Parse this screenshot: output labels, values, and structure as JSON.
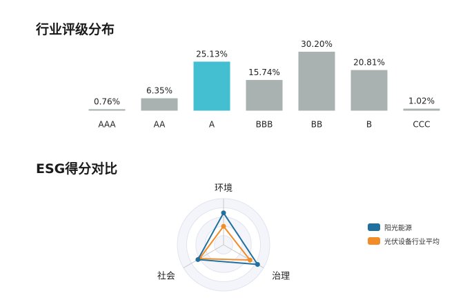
{
  "chart_data": [
    {
      "type": "bar",
      "title": "行业评级分布",
      "categories": [
        "AAA",
        "AA",
        "A",
        "BBB",
        "BB",
        "B",
        "CCC"
      ],
      "values": [
        0.76,
        6.35,
        25.13,
        15.74,
        30.2,
        20.81,
        1.02
      ],
      "data_labels": [
        "0.76%",
        "6.35%",
        "25.13%",
        "15.74%",
        "30.20%",
        "20.81%",
        "1.02%"
      ],
      "highlight": "A",
      "colors": {
        "default": "#a9b1b1",
        "highlight": "#44bfd2"
      },
      "grid": false
    },
    {
      "type": "radar",
      "title": "ESG得分对比",
      "axes": [
        "环境",
        "治理",
        "社会"
      ],
      "range": [
        0,
        100
      ],
      "series": [
        {
          "name": "阳光能源",
          "values": [
            69,
            85,
            64
          ],
          "color": "#1f6f9f"
        },
        {
          "name": "光伏设备行业平均",
          "values": [
            40,
            66,
            60
          ],
          "color": "#f28c28"
        }
      ],
      "legend": "right"
    }
  ]
}
